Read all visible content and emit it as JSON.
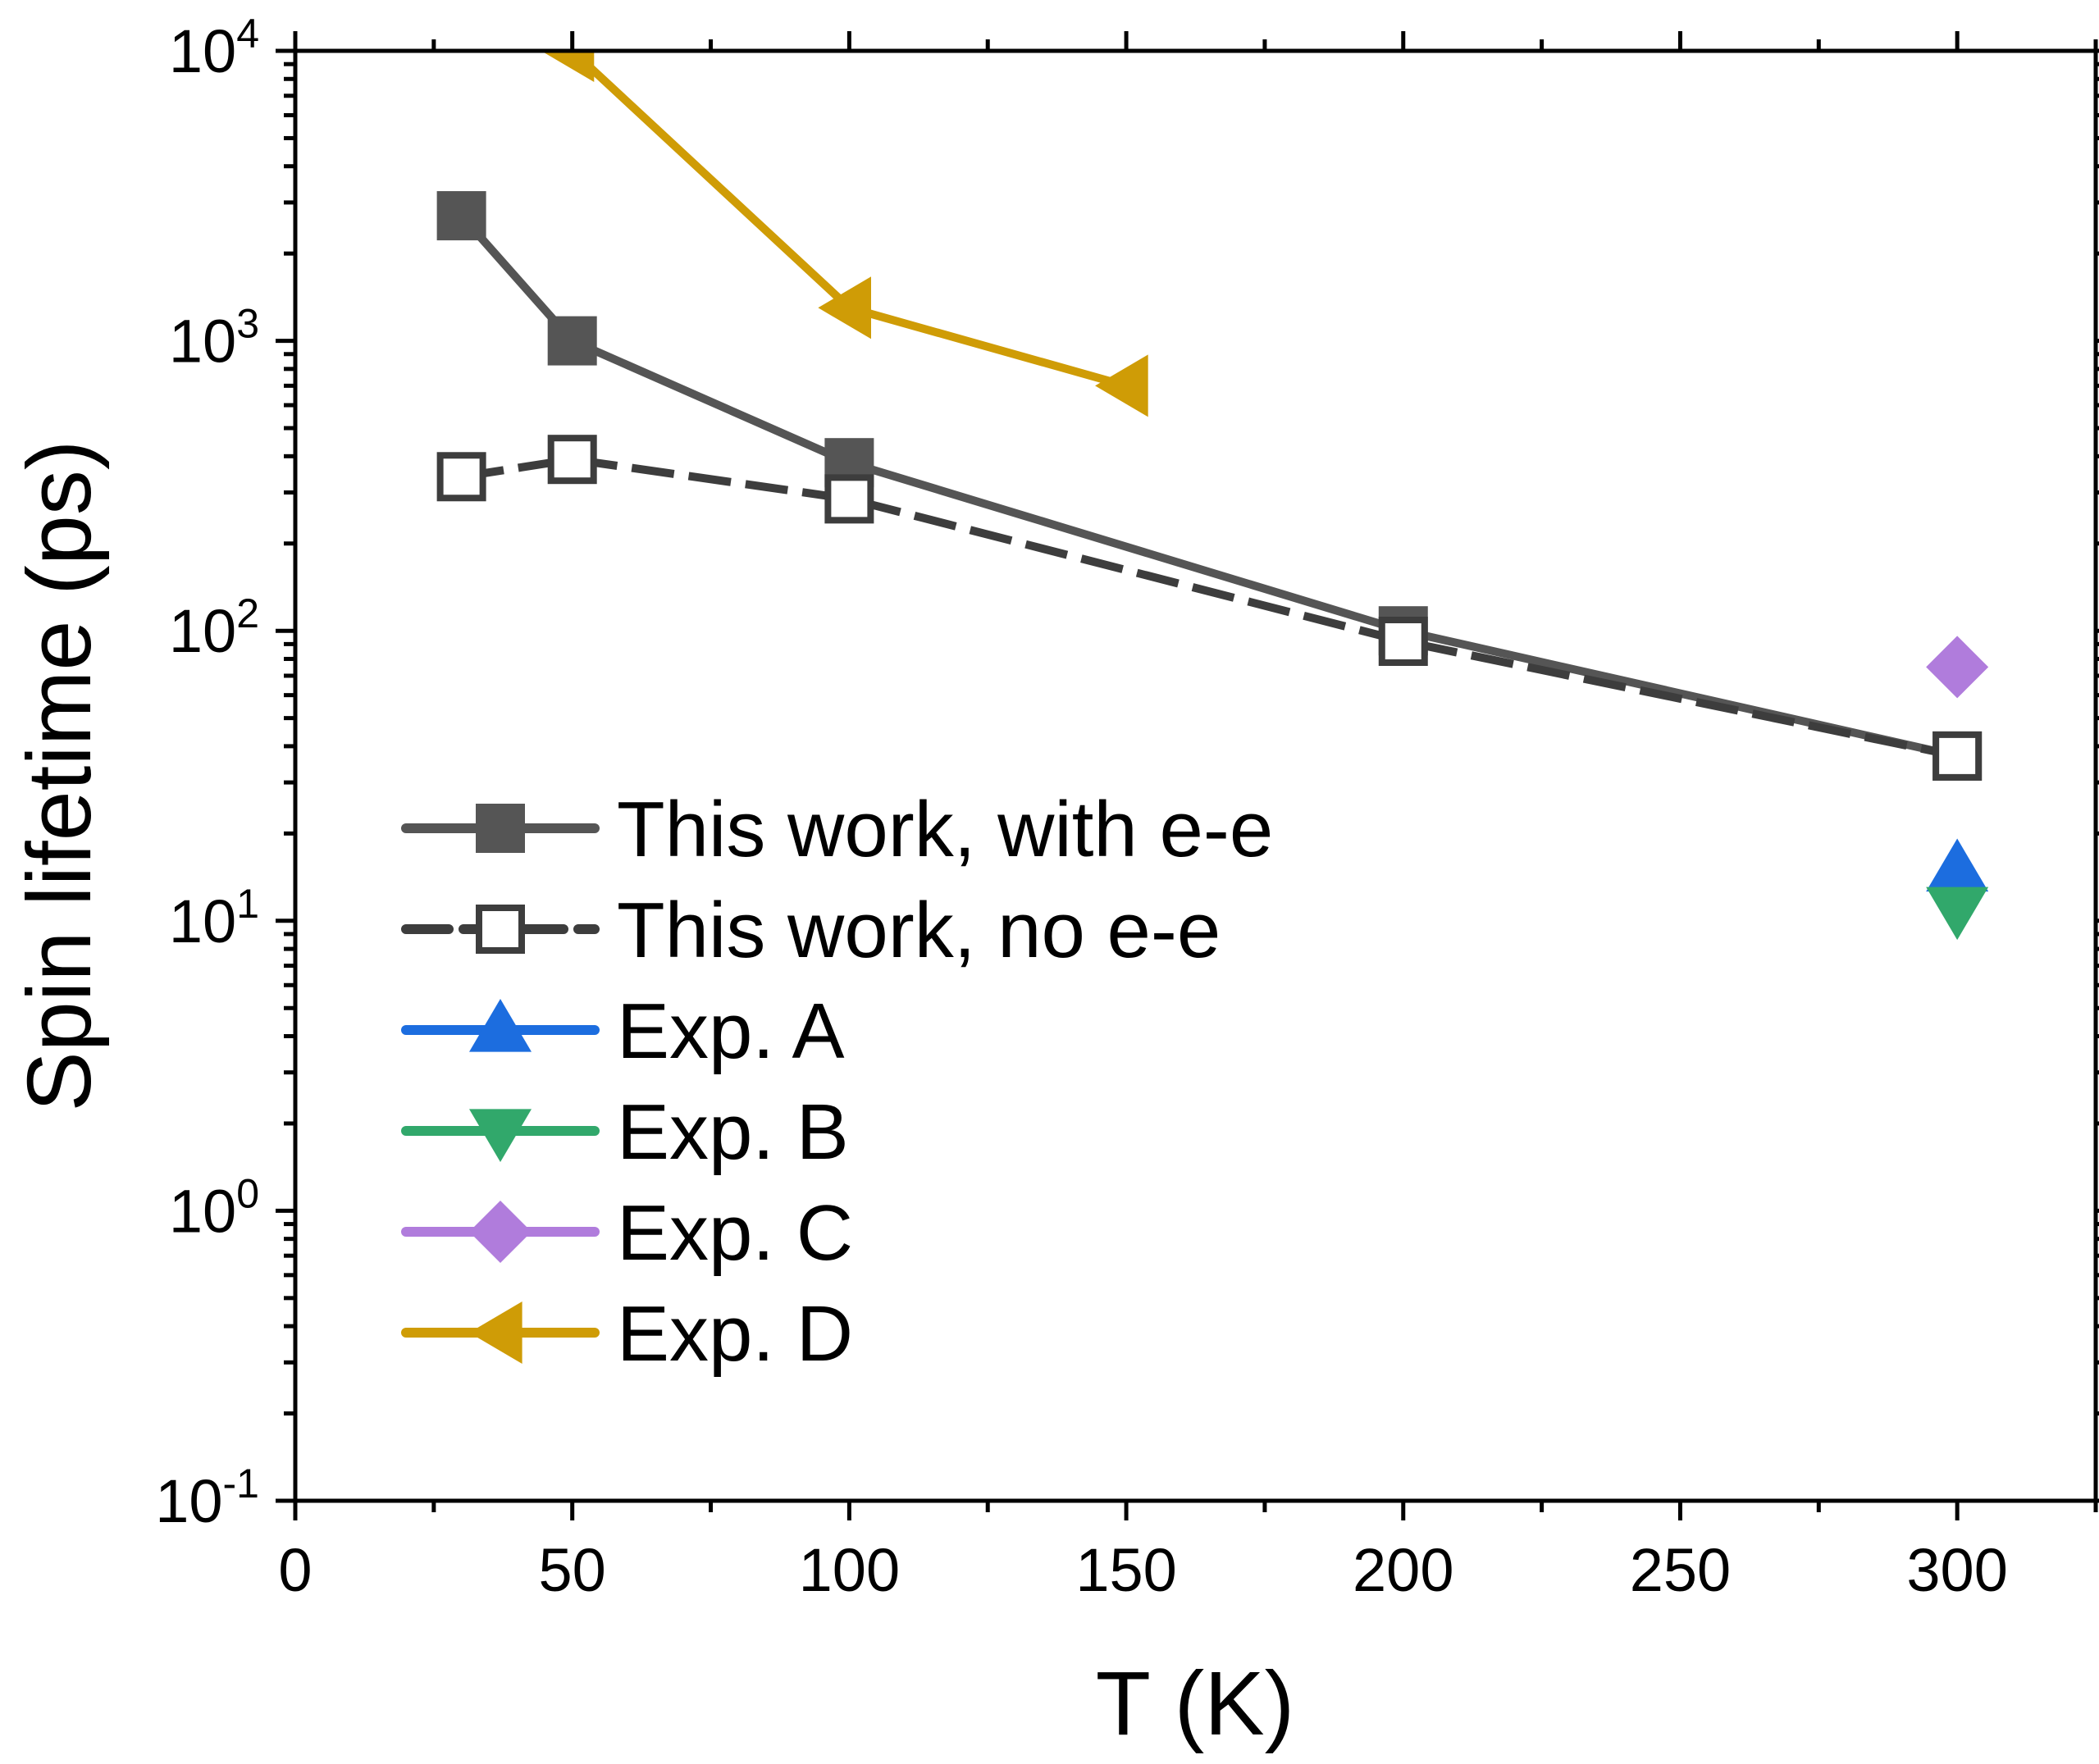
{
  "chart_data": {
    "type": "scatter",
    "xlabel": "T (K)",
    "ylabel": "Spin lifetime (ps)",
    "xlim": [
      0,
      325
    ],
    "ylim": [
      0.1,
      10000
    ],
    "yscale": "log",
    "grid": false,
    "legend_position": "lower-left",
    "xticks": [
      {
        "value": 0,
        "label": "0"
      },
      {
        "value": 50,
        "label": "50"
      },
      {
        "value": 100,
        "label": "100"
      },
      {
        "value": 150,
        "label": "150"
      },
      {
        "value": 200,
        "label": "200"
      },
      {
        "value": 250,
        "label": "250"
      },
      {
        "value": 300,
        "label": "300"
      }
    ],
    "yticks": [
      {
        "value": 0.1,
        "base": "10",
        "exp": "-1"
      },
      {
        "value": 1,
        "base": "10",
        "exp": "0"
      },
      {
        "value": 10,
        "base": "10",
        "exp": "1"
      },
      {
        "value": 100,
        "base": "10",
        "exp": "2"
      },
      {
        "value": 1000,
        "base": "10",
        "exp": "3"
      },
      {
        "value": 10000,
        "base": "10",
        "exp": "4"
      }
    ],
    "series": [
      {
        "name": "This work, with e-e",
        "marker": "square-filled",
        "color": "#555555",
        "line": "solid",
        "x": [
          30,
          50,
          100,
          200,
          300
        ],
        "y": [
          2700,
          1000,
          380,
          100,
          37
        ]
      },
      {
        "name": "This work, no e-e",
        "marker": "square-open",
        "color": "#3d3d3d",
        "line": "dashed",
        "x": [
          30,
          50,
          100,
          200,
          300
        ],
        "y": [
          340,
          390,
          285,
          92,
          37
        ]
      },
      {
        "name": "Exp. A",
        "marker": "triangle-up",
        "color": "#1c6ddf",
        "line": "none",
        "x": [
          300
        ],
        "y": [
          15
        ]
      },
      {
        "name": "Exp. B",
        "marker": "triangle-down",
        "color": "#31a86b",
        "line": "none",
        "x": [
          300
        ],
        "y": [
          11
        ]
      },
      {
        "name": "Exp. C",
        "marker": "diamond",
        "color": "#b07cdc",
        "line": "none",
        "x": [
          300
        ],
        "y": [
          75
        ]
      },
      {
        "name": "Exp. D",
        "marker": "triangle-left",
        "color": "#cf9c06",
        "line": "solid",
        "x": [
          50,
          100,
          150
        ],
        "y": [
          10000,
          1300,
          700
        ]
      }
    ]
  }
}
